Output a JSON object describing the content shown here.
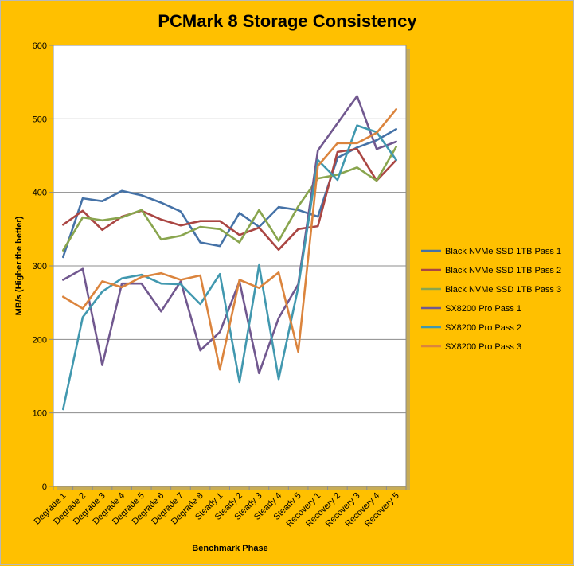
{
  "chart_data": {
    "type": "line",
    "title": "PCMark 8 Storage Consistency",
    "xlabel": "Benchmark Phase",
    "ylabel": "MB/s (Higher the better)",
    "ylim": [
      0,
      600
    ],
    "yticks": [
      "0",
      "100",
      "200",
      "300",
      "400",
      "500",
      "600"
    ],
    "grid": true,
    "legend_position": "right",
    "background_color": "#FFC000",
    "plot_background_color": "#FFFFFF",
    "categories": [
      "Degrade 1",
      "Degrade 2",
      "Degrade 3",
      "Degrade 4",
      "Degrade 5",
      "Degrade 6",
      "Degrade 7",
      "Degrade 8",
      "Steady 1",
      "Steady 2",
      "Steady 3",
      "Steady 4",
      "Steady 5",
      "Recovery 1",
      "Recovery 2",
      "Recovery 3",
      "Recovery 4",
      "Recovery 5"
    ],
    "series": [
      {
        "name": "Black NVMe SSD 1TB Pass 1",
        "color": "#4572A7",
        "values": [
          312,
          392,
          388,
          402,
          396,
          386,
          374,
          332,
          327,
          372,
          353,
          380,
          376,
          367,
          447,
          461,
          471,
          486
        ]
      },
      {
        "name": "Black NVMe SSD 1TB Pass 2",
        "color": "#AA4643",
        "values": [
          356,
          375,
          349,
          367,
          375,
          363,
          355,
          361,
          361,
          342,
          352,
          322,
          350,
          354,
          455,
          459,
          416,
          444
        ]
      },
      {
        "name": "Black NVMe SSD 1TB Pass 3",
        "color": "#89A54E",
        "values": [
          321,
          366,
          362,
          366,
          376,
          336,
          341,
          353,
          350,
          332,
          376,
          334,
          381,
          419,
          424,
          434,
          416,
          462
        ]
      },
      {
        "name": "SX8200 Pro Pass 1",
        "color": "#71588F",
        "values": [
          281,
          296,
          165,
          276,
          276,
          238,
          279,
          185,
          210,
          279,
          154,
          229,
          275,
          457,
          494,
          531,
          459,
          469
        ]
      },
      {
        "name": "SX8200 Pro Pass 2",
        "color": "#4198AF",
        "values": [
          105,
          230,
          265,
          283,
          288,
          276,
          275,
          248,
          289,
          142,
          301,
          146,
          271,
          444,
          417,
          491,
          482,
          444
        ]
      },
      {
        "name": "SX8200 Pro Pass 3",
        "color": "#DB843D",
        "values": [
          258,
          242,
          279,
          271,
          285,
          290,
          281,
          287,
          159,
          281,
          270,
          291,
          183,
          436,
          467,
          467,
          481,
          513
        ]
      }
    ]
  }
}
